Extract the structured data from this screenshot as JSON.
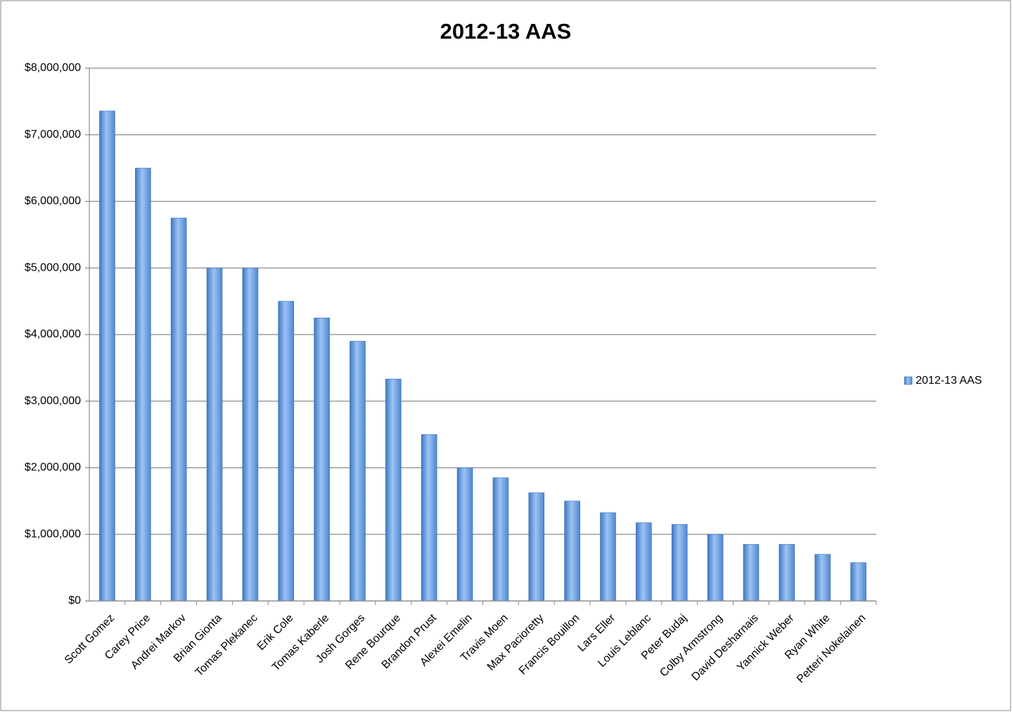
{
  "chart_data": {
    "type": "bar",
    "title": "2012-13 AAS",
    "categories": [
      "Scott Gomez",
      "Carey Price",
      "Andrei Markov",
      "Brian Gionta",
      "Tomas Plekanec",
      "Erik Cole",
      "Tomas Kaberle",
      "Josh Gorges",
      "Rene Bourque",
      "Brandon Prust",
      "Alexei Emelin",
      "Travis Moen",
      "Max Pacioretty",
      "Francis Bouillon",
      "Lars Eller",
      "Louis Leblanc",
      "Peter Budaj",
      "Colby Armstrong",
      "David Desharnais",
      "Yannick Weber",
      "Ryan White",
      "Petteri Nokelainen"
    ],
    "series": [
      {
        "name": "2012-13 AAS",
        "color": "#4a86d0",
        "values": [
          7357143,
          6500000,
          5750000,
          5000000,
          5000000,
          4500000,
          4250000,
          3900000,
          3333333,
          2500000,
          2000000,
          1850000,
          1625000,
          1500000,
          1325000,
          1175000,
          1150000,
          1000000,
          850000,
          850000,
          700000,
          575000
        ]
      }
    ],
    "ylim": [
      0,
      8000000
    ],
    "yticks": [
      {
        "value": 0,
        "label": "$0"
      },
      {
        "value": 1000000,
        "label": "$1,000,000"
      },
      {
        "value": 2000000,
        "label": "$2,000,000"
      },
      {
        "value": 3000000,
        "label": "$3,000,000"
      },
      {
        "value": 4000000,
        "label": "$4,000,000"
      },
      {
        "value": 5000000,
        "label": "$5,000,000"
      },
      {
        "value": 6000000,
        "label": "$6,000,000"
      },
      {
        "value": 7000000,
        "label": "$7,000,000"
      },
      {
        "value": 8000000,
        "label": "$8,000,000"
      }
    ],
    "grid": true,
    "legend": "right"
  }
}
